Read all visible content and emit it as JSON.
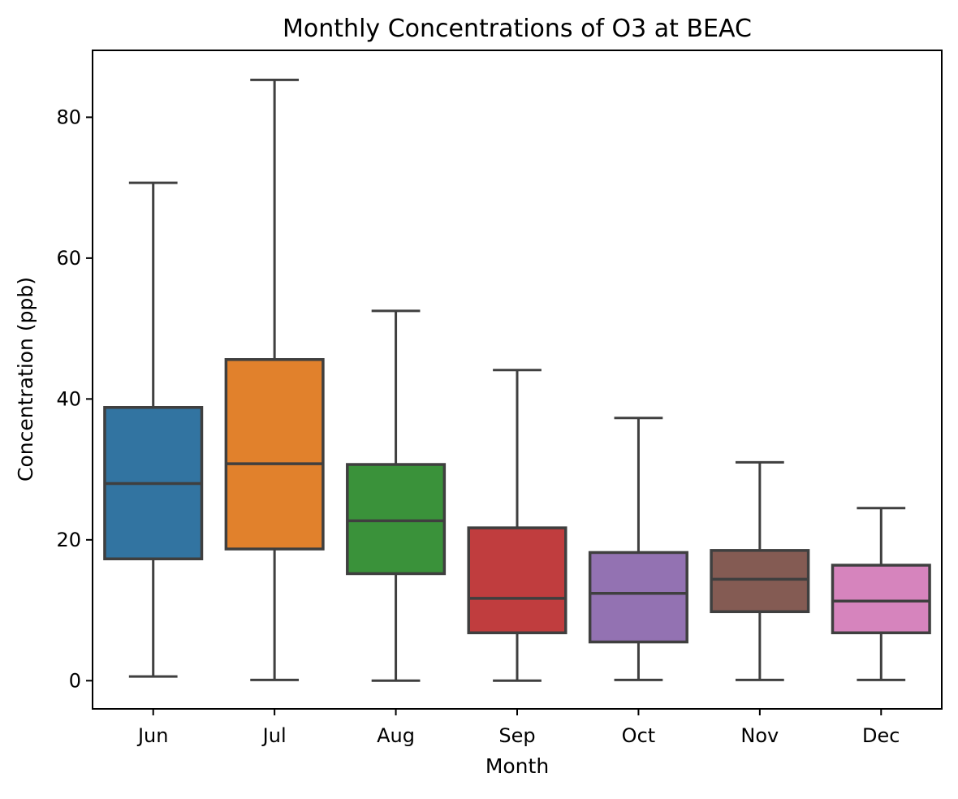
{
  "chart_data": {
    "type": "box",
    "title": "Monthly Concentrations of O3 at BEAC",
    "xlabel": "Month",
    "ylabel": "Concentration (ppb)",
    "ylim": [
      -4,
      89.5
    ],
    "yticks": [
      0,
      20,
      40,
      60,
      80
    ],
    "grid": false,
    "categories": [
      "Jun",
      "Jul",
      "Aug",
      "Sep",
      "Oct",
      "Nov",
      "Dec"
    ],
    "colors": [
      "#3274a1",
      "#e1812c",
      "#3a923a",
      "#c03d3e",
      "#9372b2",
      "#845b53",
      "#d684bd"
    ],
    "boxes": [
      {
        "whisker_low": 0.6,
        "q1": 17.3,
        "median": 28.0,
        "q3": 38.8,
        "whisker_high": 70.7
      },
      {
        "whisker_low": 0.1,
        "q1": 18.7,
        "median": 30.8,
        "q3": 45.6,
        "whisker_high": 85.3
      },
      {
        "whisker_low": 0.0,
        "q1": 15.2,
        "median": 22.7,
        "q3": 30.7,
        "whisker_high": 52.5
      },
      {
        "whisker_low": 0.0,
        "q1": 6.8,
        "median": 11.7,
        "q3": 21.7,
        "whisker_high": 44.1
      },
      {
        "whisker_low": 0.1,
        "q1": 5.5,
        "median": 12.4,
        "q3": 18.2,
        "whisker_high": 37.3
      },
      {
        "whisker_low": 0.1,
        "q1": 9.8,
        "median": 14.4,
        "q3": 18.5,
        "whisker_high": 31.0
      },
      {
        "whisker_low": 0.1,
        "q1": 6.8,
        "median": 11.3,
        "q3": 16.4,
        "whisker_high": 24.5
      }
    ]
  }
}
